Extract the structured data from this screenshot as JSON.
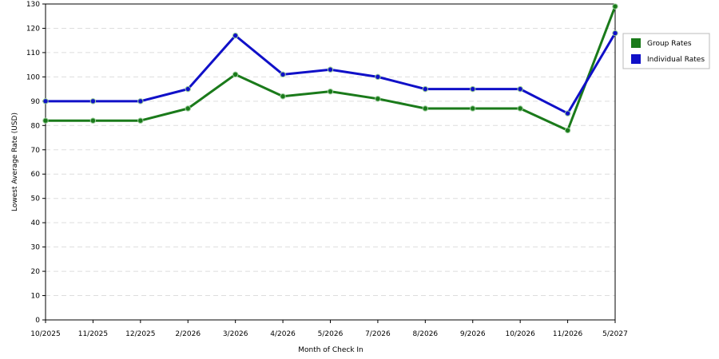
{
  "chart_data": {
    "type": "line",
    "x_label": "Month of Check In",
    "y_label": "Lowest Average Rate (USD)",
    "categories": [
      "10/2025",
      "11/2025",
      "12/2025",
      "2/2026",
      "3/2026",
      "4/2026",
      "5/2026",
      "7/2026",
      "8/2026",
      "9/2026",
      "10/2026",
      "11/2026",
      "5/2027"
    ],
    "series": [
      {
        "name": "Group Rates",
        "color": "#1a7a1a",
        "values": [
          82,
          82,
          82,
          87,
          101,
          92,
          94,
          91,
          87,
          87,
          87,
          78,
          129
        ]
      },
      {
        "name": "Individual Rates",
        "color": "#1010c8",
        "values": [
          90,
          90,
          90,
          95,
          117,
          101,
          103,
          100,
          95,
          95,
          95,
          85,
          118
        ]
      }
    ],
    "ylim": [
      0,
      130
    ],
    "yticks": [
      0,
      10,
      20,
      30,
      40,
      50,
      60,
      70,
      80,
      90,
      100,
      110,
      120,
      130
    ],
    "grid": true,
    "legend": "right"
  }
}
